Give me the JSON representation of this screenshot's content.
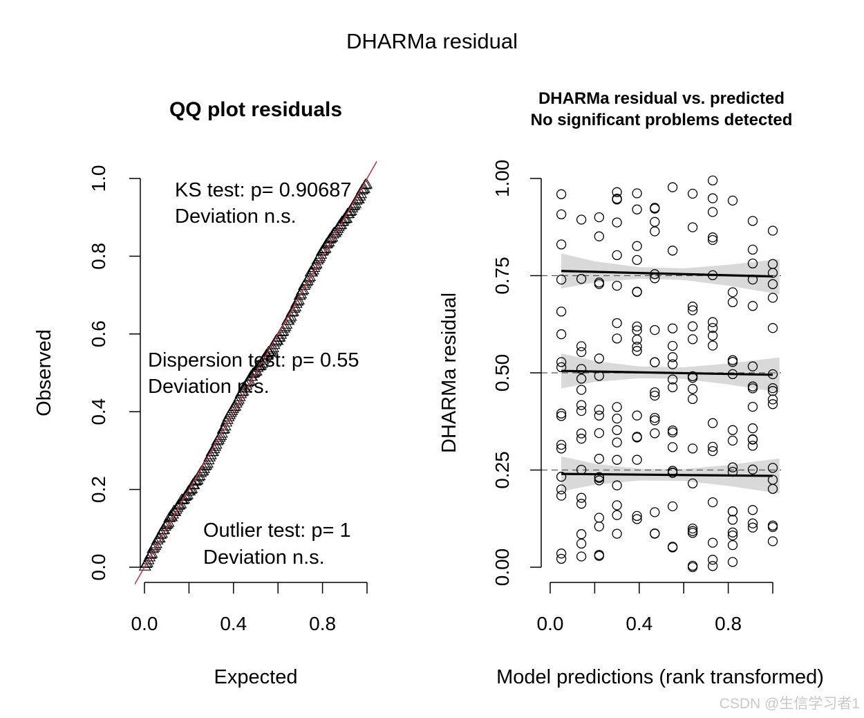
{
  "figure": {
    "main_title": "DHARMa residual",
    "watermark": "CSDN @生信学习者1"
  },
  "chart_data": [
    {
      "type": "scatter",
      "id": "qq",
      "title": "QQ plot residuals",
      "xlabel": "Expected",
      "ylabel": "Observed",
      "xlim": [
        0,
        1
      ],
      "ylim": [
        0,
        1
      ],
      "x_ticks": [
        0.0,
        0.2,
        0.4,
        0.6,
        0.8,
        1.0
      ],
      "x_tick_labels": [
        "0.0",
        "0.4",
        "0.8"
      ],
      "y_ticks": [
        0.0,
        0.2,
        0.4,
        0.6,
        0.8,
        1.0
      ],
      "y_tick_labels": [
        "0.0",
        "0.2",
        "0.4",
        "0.6",
        "0.8",
        "1.0"
      ],
      "marker": "triangle",
      "n_points": 200,
      "reference_line": {
        "slope": 1,
        "intercept": 0,
        "color": "#c0354b"
      },
      "annotations": {
        "ks_test": "KS test: p= 0.90687",
        "ks_dev": "Deviation  n.s.",
        "disp_test": "Dispersion test: p= 0.55",
        "disp_dev": "Deviation  n.s.",
        "outlier_test": "Outlier test: p= 1",
        "outlier_dev": "Deviation  n.s."
      }
    },
    {
      "type": "scatter",
      "id": "resid",
      "title_line1": "DHARMa residual vs. predicted",
      "title_line2": "No significant problems detected",
      "xlabel": "Model predictions (rank transformed)",
      "ylabel": "DHARMa residual",
      "xlim": [
        0,
        1
      ],
      "ylim": [
        0,
        1
      ],
      "x_ticks": [
        0.0,
        0.2,
        0.4,
        0.6,
        0.8,
        1.0
      ],
      "x_tick_labels": [
        "0.0",
        "0.4",
        "0.8"
      ],
      "y_ticks": [
        0.0,
        0.25,
        0.5,
        0.75,
        1.0
      ],
      "y_tick_labels": [
        "0.00",
        "0.25",
        "0.50",
        "0.75",
        "1.00"
      ],
      "marker": "open-circle",
      "x_groups": [
        0.05,
        0.14,
        0.22,
        0.3,
        0.39,
        0.47,
        0.55,
        0.64,
        0.73,
        0.82,
        0.91,
        1.0
      ],
      "points_per_group": 17,
      "reference_lines": [
        0.25,
        0.5,
        0.75
      ],
      "quantile_fits": [
        {
          "quantile": 0.25,
          "y_start": 0.24,
          "y_end": 0.235
        },
        {
          "quantile": 0.5,
          "y_start": 0.505,
          "y_end": 0.495
        },
        {
          "quantile": 0.75,
          "y_start": 0.762,
          "y_end": 0.748
        }
      ],
      "band_color": "#d9d9d9"
    }
  ]
}
